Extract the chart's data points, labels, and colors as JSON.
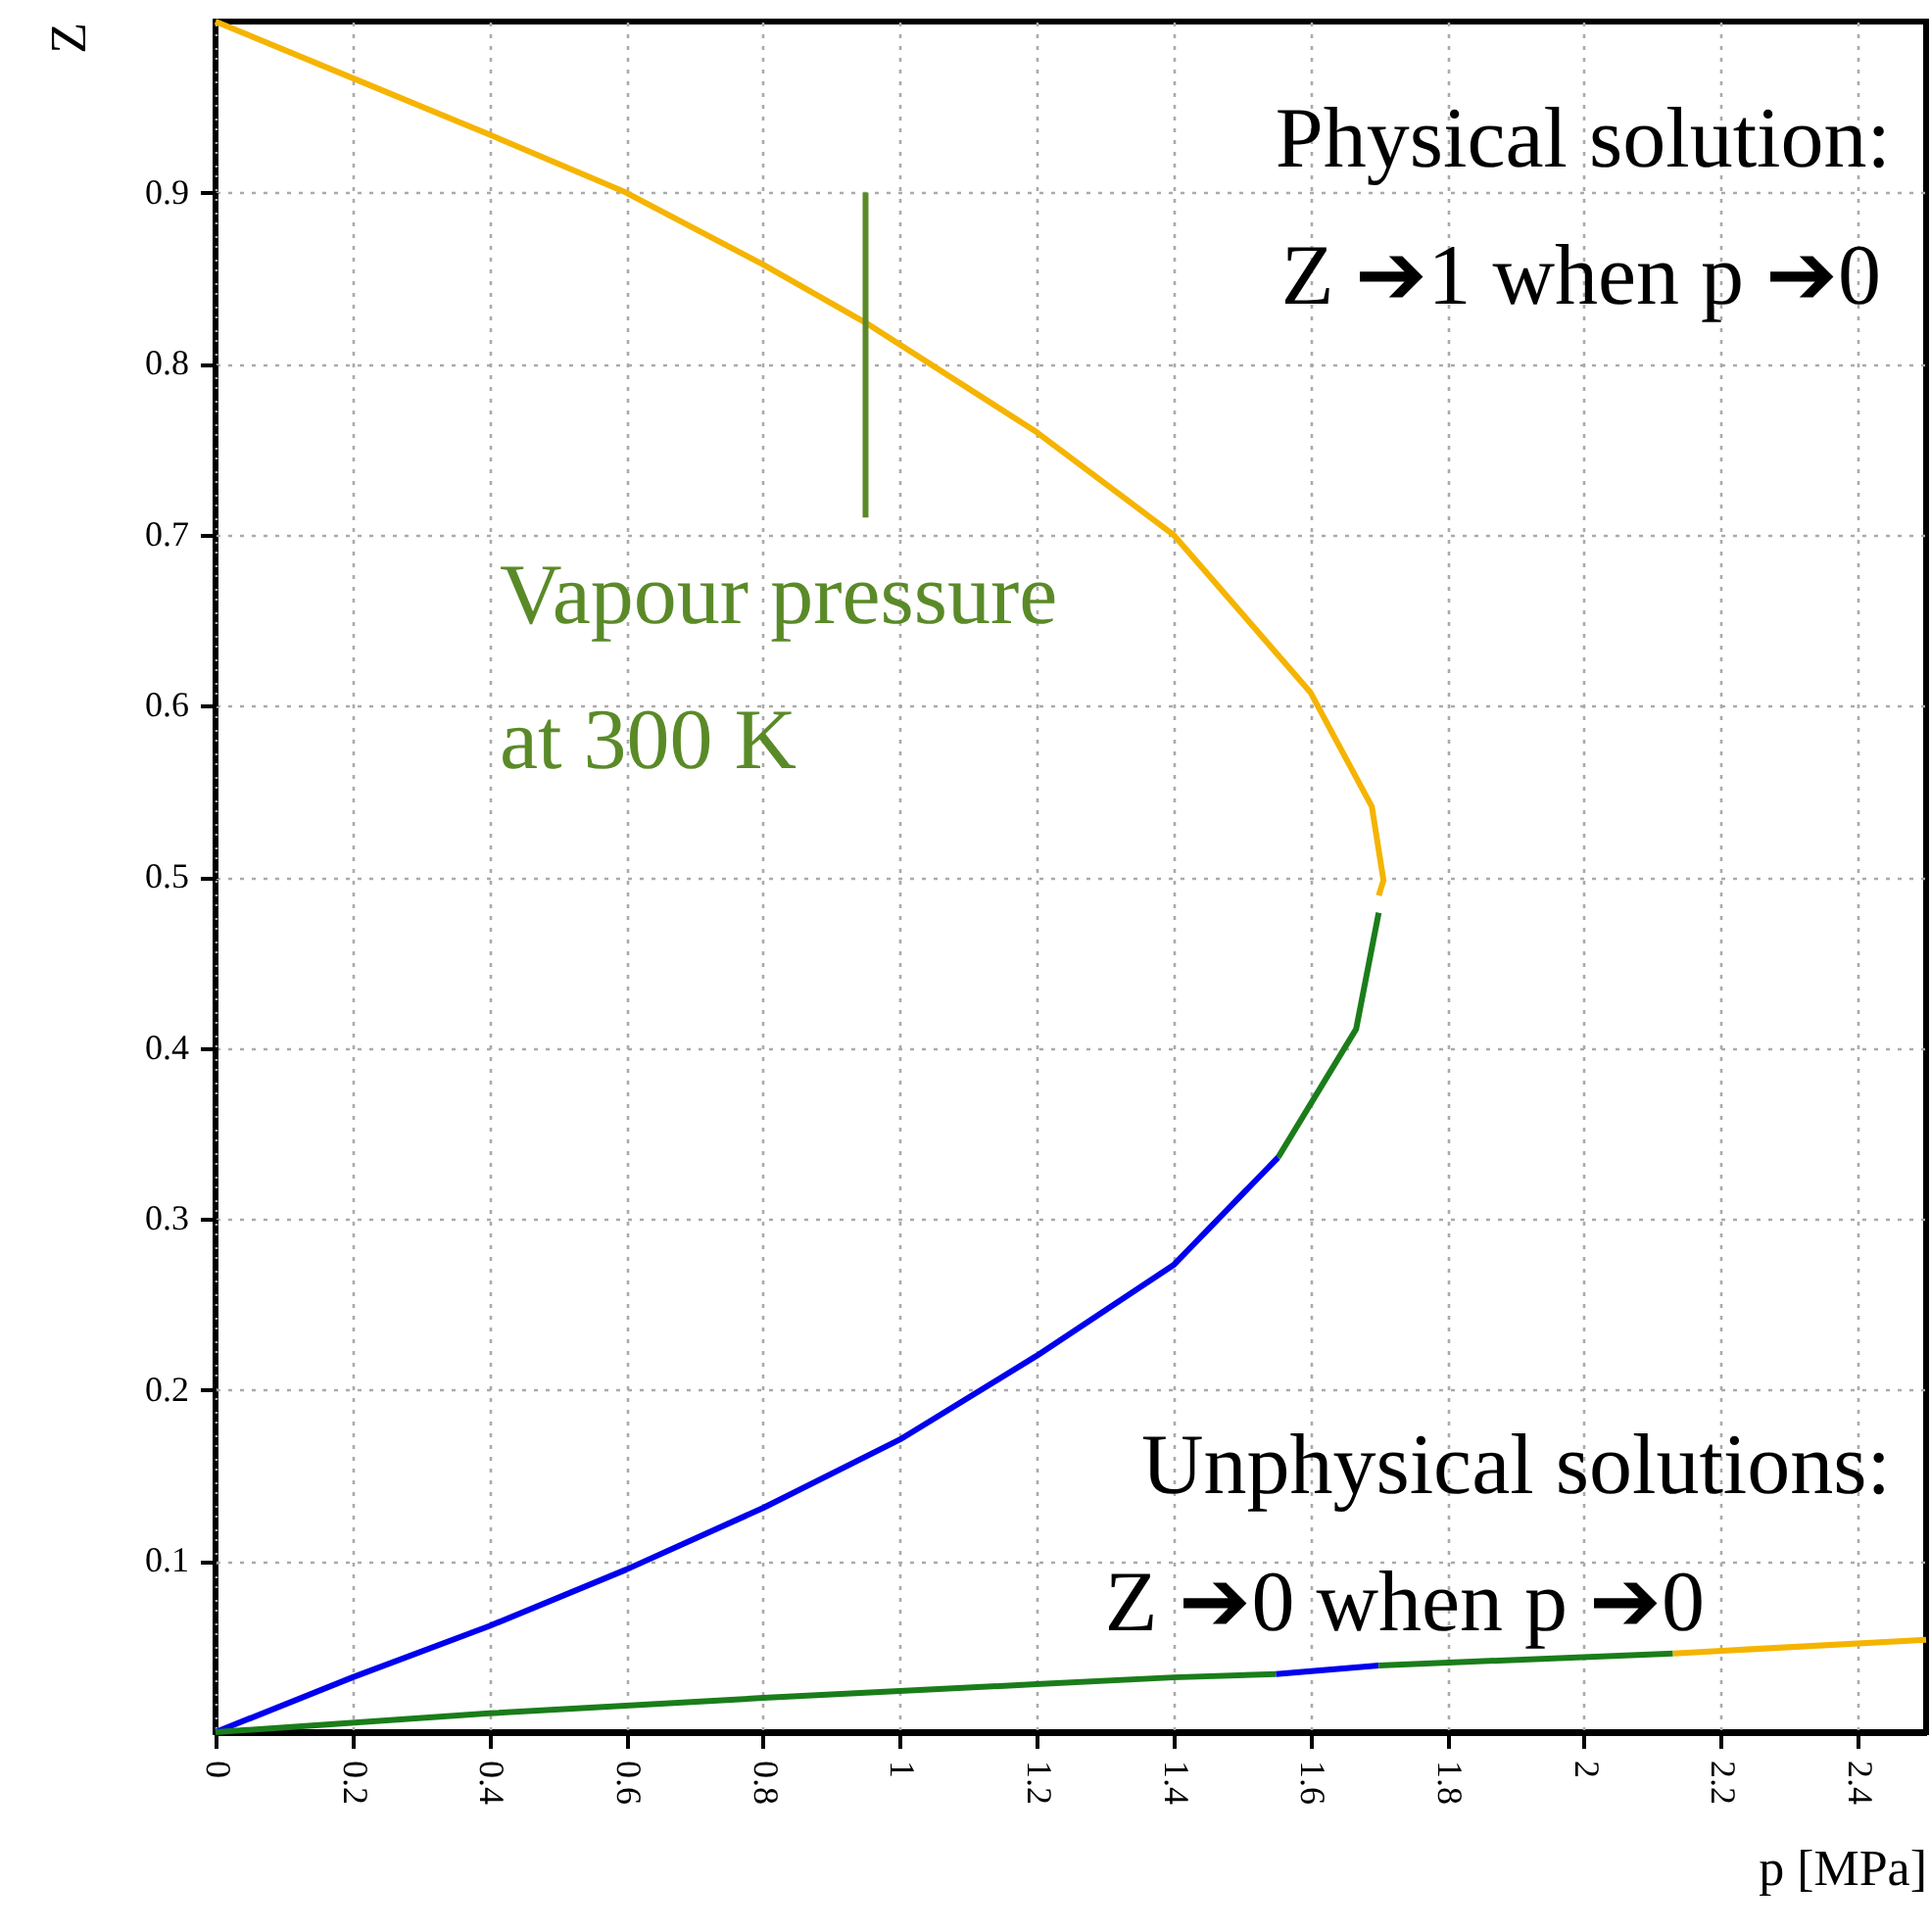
{
  "chart_data": {
    "type": "line",
    "xlabel": "p [MPa]",
    "ylabel": "Z",
    "xlim": [
      0,
      2.5
    ],
    "ylim": [
      0,
      1
    ],
    "xticks": [
      0,
      0.2,
      0.4,
      0.6,
      0.8,
      1,
      1.2,
      1.4,
      1.6,
      1.8,
      2,
      2.2,
      2.4
    ],
    "yticks": [
      0.1,
      0.2,
      0.3,
      0.4,
      0.5,
      0.6,
      0.7,
      0.8,
      0.9
    ],
    "grid": true,
    "series": [
      {
        "color": "#f5b400",
        "x": [
          0,
          0.2,
          0.4,
          0.6,
          0.8,
          0.95,
          1.2,
          1.4,
          1.6,
          1.69,
          1.707,
          1.7
        ],
        "values": [
          1.0,
          0.967,
          0.934,
          0.9,
          0.858,
          0.824,
          0.76,
          0.7,
          0.608,
          0.541,
          0.498,
          0.489
        ]
      },
      {
        "color": "#1a7d1a",
        "x": [
          1.7,
          1.667,
          1.553
        ],
        "values": [
          0.479,
          0.411,
          0.336
        ]
      },
      {
        "color": "#0000ee",
        "x": [
          1.553,
          1.4,
          1.2,
          1.0,
          0.8,
          0.6,
          0.4,
          0.2,
          0
        ],
        "values": [
          0.336,
          0.273,
          0.22,
          0.171,
          0.131,
          0.095,
          0.062,
          0.032,
          0
        ]
      },
      {
        "color": "#1a7d1a",
        "x": [
          0,
          0.4,
          0.8,
          1.2,
          1.4,
          1.55
        ],
        "values": [
          0,
          0.011,
          0.02,
          0.028,
          0.032,
          0.034
        ]
      },
      {
        "color": "#0000ee",
        "x": [
          1.55,
          1.7
        ],
        "values": [
          0.034,
          0.039
        ]
      },
      {
        "color": "#1a7d1a",
        "x": [
          1.7,
          2.13
        ],
        "values": [
          0.039,
          0.046
        ]
      },
      {
        "color": "#f5b400",
        "x": [
          2.13,
          2.5
        ],
        "values": [
          0.046,
          0.054
        ]
      },
      {
        "color": "#5a8a28",
        "x": [
          0.95,
          0.95
        ],
        "values": [
          0.71,
          0.9
        ]
      }
    ],
    "annotations": [
      "Physical solution:",
      "Z ➔1 when p ➔0",
      "Vapour pressure",
      "at 300 K",
      "Unphysical solutions:",
      "Z ➔0 when p ➔0"
    ]
  }
}
